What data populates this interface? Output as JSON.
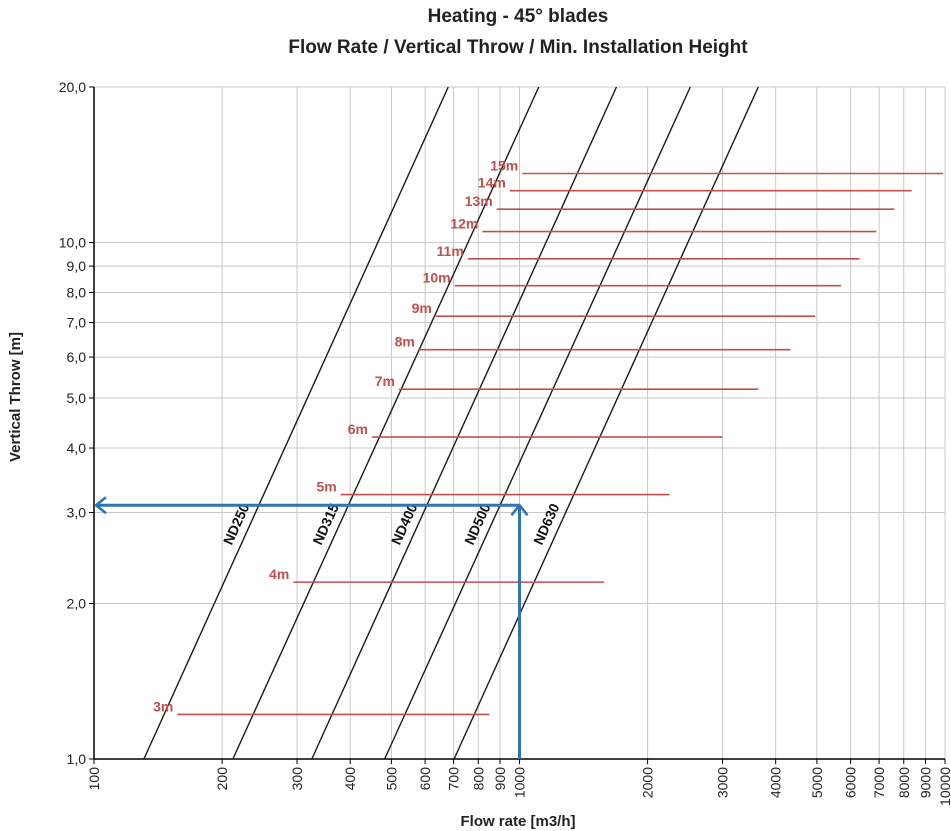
{
  "chart_data": {
    "type": "line",
    "title_lines": [
      "Heating - 45° blades",
      "Flow Rate / Vertical Throw / Min. Installation Height"
    ],
    "xlabel": "Flow rate [m3/h]",
    "ylabel": "Vertical Throw [m]",
    "x_scale": "log",
    "y_scale": "log",
    "xlim": [
      100,
      10000
    ],
    "ylim": [
      1,
      20
    ],
    "grid": true,
    "x_ticks": [
      {
        "value": 100,
        "label": "100"
      },
      {
        "value": 200,
        "label": "200"
      },
      {
        "value": 300,
        "label": "300"
      },
      {
        "value": 400,
        "label": "400"
      },
      {
        "value": 500,
        "label": "500"
      },
      {
        "value": 600,
        "label": "600"
      },
      {
        "value": 700,
        "label": "700"
      },
      {
        "value": 800,
        "label": "800"
      },
      {
        "value": 900,
        "label": "900"
      },
      {
        "value": 1000,
        "label": "1000"
      },
      {
        "value": 2000,
        "label": "2000"
      },
      {
        "value": 3000,
        "label": "3000"
      },
      {
        "value": 4000,
        "label": "4000"
      },
      {
        "value": 5000,
        "label": "5000"
      },
      {
        "value": 6000,
        "label": "6000"
      },
      {
        "value": 7000,
        "label": "7000"
      },
      {
        "value": 8000,
        "label": "8000"
      },
      {
        "value": 9000,
        "label": "9000"
      },
      {
        "value": 10000,
        "label": "10000"
      }
    ],
    "y_ticks": [
      {
        "value": 1,
        "label": "1,0"
      },
      {
        "value": 2,
        "label": "2,0"
      },
      {
        "value": 3,
        "label": "3,0"
      },
      {
        "value": 4,
        "label": "4,0"
      },
      {
        "value": 5,
        "label": "5,0"
      },
      {
        "value": 6,
        "label": "6,0"
      },
      {
        "value": 7,
        "label": "7,0"
      },
      {
        "value": 8,
        "label": "8,0"
      },
      {
        "value": 9,
        "label": "9,0"
      },
      {
        "value": 10,
        "label": "10,0"
      },
      {
        "value": 20,
        "label": "20,0"
      }
    ],
    "series": [
      {
        "name": "ND250",
        "x": [
          131,
          680
        ],
        "y": [
          1,
          20
        ]
      },
      {
        "name": "ND315",
        "x": [
          212,
          1110
        ],
        "y": [
          1,
          20
        ]
      },
      {
        "name": "ND400",
        "x": [
          325,
          1690
        ],
        "y": [
          1,
          20
        ]
      },
      {
        "name": "ND500",
        "x": [
          482,
          2520
        ],
        "y": [
          1,
          20
        ]
      },
      {
        "name": "ND630",
        "x": [
          702,
          3640
        ],
        "y": [
          1,
          20
        ]
      }
    ],
    "series_label_color": "#111111",
    "installation_heights": [
      {
        "label": "3m",
        "y": 1.22,
        "x_start": 157,
        "x_end": 850
      },
      {
        "label": "4m",
        "y": 2.2,
        "x_start": 294,
        "x_end": 1580
      },
      {
        "label": "5m",
        "y": 3.25,
        "x_start": 380,
        "x_end": 2250
      },
      {
        "label": "6m",
        "y": 4.2,
        "x_start": 450,
        "x_end": 3000
      },
      {
        "label": "7m",
        "y": 5.2,
        "x_start": 521,
        "x_end": 3640
      },
      {
        "label": "8m",
        "y": 6.2,
        "x_start": 580,
        "x_end": 4330
      },
      {
        "label": "9m",
        "y": 7.2,
        "x_start": 636,
        "x_end": 4950
      },
      {
        "label": "10m",
        "y": 8.25,
        "x_start": 704,
        "x_end": 5700
      },
      {
        "label": "11m",
        "y": 9.3,
        "x_start": 756,
        "x_end": 6300
      },
      {
        "label": "12m",
        "y": 10.5,
        "x_start": 818,
        "x_end": 6900
      },
      {
        "label": "13m",
        "y": 11.6,
        "x_start": 884,
        "x_end": 7600
      },
      {
        "label": "14m",
        "y": 12.6,
        "x_start": 949,
        "x_end": 8350
      },
      {
        "label": "15m",
        "y": 13.6,
        "x_start": 1015,
        "x_end": 9900
      }
    ],
    "installation_height_color": "#c0504d",
    "example_reading": {
      "x": 1000,
      "y": 3.1,
      "color": "#2e75b6"
    },
    "line_color": "#1a1a1a",
    "grid_color": "#c8c8c8"
  }
}
